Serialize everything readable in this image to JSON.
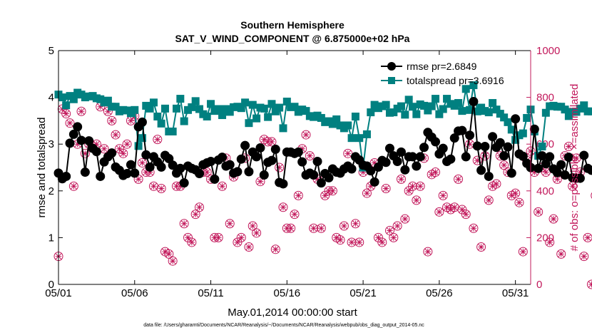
{
  "chart_data": {
    "type": "line",
    "title": "Southern Hemisphere",
    "subtitle": "SAT_V_WIND_COMPONENT @ 6.875000e+02 hPa",
    "xlabel": "May.01,2014 00:00:00 start",
    "ylabel": "rmse and totalspread",
    "y2label": "# of obs: o=possible; ×=assimilated",
    "footer": "data file: /Users/gharamti/Documents/NCAR/Reanalysis/~/Documents/NCAR/Reanalysis/webpub/obs_diag_output_2014-05.nc",
    "xlim": [
      1,
      32
    ],
    "ylim": [
      0,
      5
    ],
    "y2lim": [
      0,
      1000
    ],
    "xticks": [
      1,
      6,
      11,
      16,
      21,
      26,
      31
    ],
    "xtick_labels": [
      "05/01",
      "05/06",
      "05/11",
      "05/16",
      "05/21",
      "05/26",
      "05/31"
    ],
    "yticks": [
      0,
      1,
      2,
      3,
      4,
      5
    ],
    "ytick_labels": [
      "0",
      "1",
      "2",
      "3",
      "4",
      "5"
    ],
    "y2ticks": [
      0,
      200,
      400,
      600,
      800,
      1000
    ],
    "y2tick_labels": [
      "0",
      "200",
      "400",
      "600",
      "800",
      "1000"
    ],
    "legend_position": "top-right",
    "colors": {
      "rmse": "#000000",
      "totalspread": "#008080",
      "obs": "#c2185b"
    },
    "series": [
      {
        "name": "rmse",
        "legend": "rmse pr=2.6849",
        "values": [
          2.38,
          2.26,
          2.31,
          3.02,
          3.21,
          3.37,
          3.08,
          2.4,
          3.07,
          2.91,
          2.84,
          2.31,
          2.62,
          2.73,
          2.81,
          2.51,
          2.44,
          2.33,
          2.37,
          2.56,
          2.38,
          3.37,
          3.47,
          2.77,
          2.51,
          2.73,
          2.62,
          2.51,
          2.76,
          2.69,
          2.55,
          2.38,
          2.48,
          2.17,
          2.53,
          2.48,
          2.45,
          2.37,
          2.56,
          2.6,
          2.63,
          2.25,
          2.66,
          2.72,
          2.53,
          2.56,
          2.38,
          2.41,
          2.68,
          2.97,
          2.41,
          2.83,
          2.73,
          2.92,
          2.34,
          2.61,
          2.65,
          2.89,
          2.18,
          2.15,
          2.83,
          2.83,
          2.8,
          2.83,
          2.62,
          2.34,
          2.38,
          2.34,
          2.63,
          2.17,
          2.37,
          2.28,
          2.47,
          2.4,
          2.38,
          2.47,
          2.53,
          2.47,
          2.73,
          2.66,
          2.55,
          2.53,
          2.43,
          2.19,
          2.51,
          2.65,
          2.61,
          2.91,
          2.75,
          2.63,
          2.83,
          2.45,
          2.73,
          2.73,
          2.53,
          2.73,
          2.93,
          3.25,
          3.15,
          3.05,
          2.79,
          2.91,
          2.63,
          2.68,
          3.13,
          3.28,
          3.29,
          2.73,
          3.19,
          3.91,
          2.96,
          2.44,
          2.95,
          2.31,
          3.16,
          2.93,
          3.03,
          2.75,
          2.94,
          2.38,
          3.54,
          2.79,
          2.74,
          2.59,
          2.5,
          3.32,
          2.48,
          2.75,
          2.58,
          2.73,
          2.47,
          2.39,
          2.56,
          2.34,
          2.72,
          2.28,
          2.27,
          2.27,
          2.76,
          2.48,
          2.44
        ]
      },
      {
        "name": "totalspread",
        "legend": "totalspread pr=3.6916",
        "values": [
          4.06,
          4.0,
          3.83,
          4.03,
          3.96,
          4.1,
          4.06,
          4.0,
          4.02,
          4.03,
          3.98,
          3.96,
          3.89,
          3.93,
          3.8,
          3.8,
          3.7,
          3.73,
          3.72,
          3.66,
          3.73,
          2.96,
          3.13,
          3.82,
          3.76,
          3.89,
          3.59,
          3.44,
          3.76,
          3.27,
          3.27,
          3.76,
          3.97,
          3.49,
          3.73,
          3.79,
          3.92,
          3.75,
          3.64,
          3.59,
          3.86,
          3.71,
          3.75,
          3.62,
          3.75,
          3.69,
          3.79,
          3.8,
          3.77,
          3.89,
          3.45,
          3.84,
          3.55,
          3.78,
          3.76,
          3.58,
          3.86,
          3.7,
          3.78,
          3.34,
          3.91,
          3.79,
          3.8,
          3.69,
          3.74,
          3.71,
          3.6,
          3.58,
          3.61,
          3.56,
          3.47,
          3.49,
          3.43,
          3.53,
          3.4,
          3.34,
          3.4,
          3.13,
          3.59,
          3.13,
          2.5,
          3.21,
          3.68,
          3.84,
          3.77,
          3.81,
          3.84,
          3.67,
          3.68,
          3.76,
          3.81,
          3.63,
          3.95,
          3.8,
          3.64,
          3.85,
          3.82,
          3.72,
          3.81,
          3.97,
          3.64,
          3.75,
          3.97,
          3.86,
          3.82,
          3.88,
          3.71,
          4.18,
          3.73,
          4.26,
          3.7,
          3.78,
          3.71,
          3.68,
          3.88,
          3.74,
          3.65,
          3.57,
          3.47,
          3.31,
          3.09,
          3.19,
          3.23,
          3.56,
          3.74,
          3.27,
          2.75,
          2.95,
          3.67,
          3.81,
          3.82,
          3.8,
          3.8,
          3.74,
          3.6,
          3.69,
          3.69,
          3.76,
          3.83,
          3.7,
          3.7
        ]
      }
    ],
    "obs_possible": [
      120,
      750,
      730,
      690,
      420,
      600,
      740,
      560,
      600,
      590,
      600,
      760,
      580,
      740,
      700,
      640,
      580,
      560,
      600,
      700,
      720,
      450,
      520,
      480,
      480,
      420,
      620,
      410,
      140,
      130,
      100,
      420,
      420,
      260,
      200,
      180,
      300,
      330,
      480,
      480,
      450,
      200,
      200,
      420,
      540,
      260,
      460,
      180,
      200,
      540,
      160,
      250,
      220,
      440,
      620,
      610,
      610,
      150,
      500,
      330,
      240,
      240,
      300,
      380,
      580,
      640,
      550,
      240,
      450,
      240,
      380,
      400,
      400,
      200,
      190,
      250,
      560,
      180,
      260,
      180,
      480,
      390,
      420,
      520,
      200,
      180,
      410,
      230,
      200,
      250,
      450,
      280,
      400,
      420,
      360,
      420,
      540,
      140,
      470,
      480,
      310,
      380,
      330,
      320,
      330,
      450,
      320,
      300,
      600,
      240,
      530,
      160,
      550,
      360,
      420,
      430,
      550,
      510,
      480,
      380,
      390,
      350,
      140,
      530,
      570,
      480,
      310,
      500,
      480,
      180,
      280,
      450,
      130,
      550,
      590,
      420,
      540,
      480,
      120,
      200,
      0,
      380,
      410
    ]
  }
}
